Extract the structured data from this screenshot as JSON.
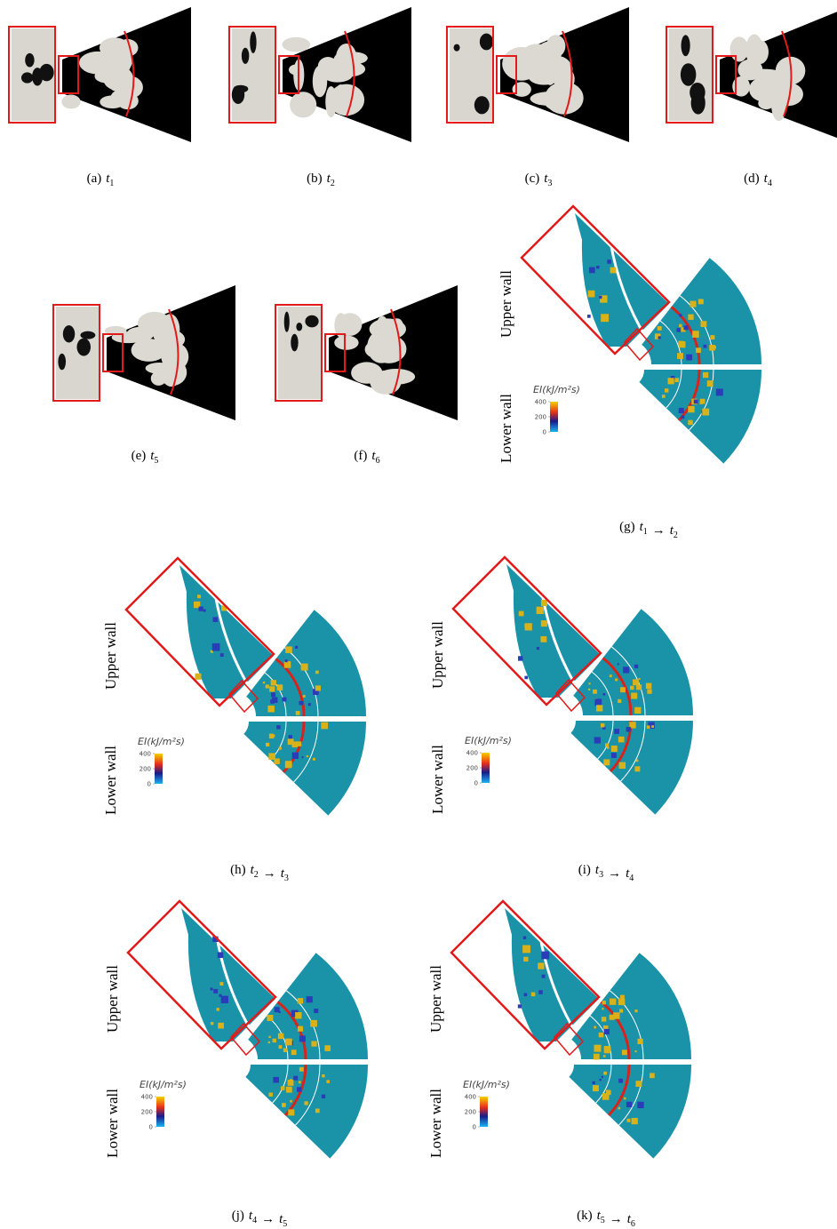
{
  "variable": "t",
  "arrow": "→",
  "snapshots": [
    {
      "label": "(a)",
      "time": "1"
    },
    {
      "label": "(b)",
      "time": "2"
    },
    {
      "label": "(c)",
      "time": "3"
    },
    {
      "label": "(d)",
      "time": "4"
    },
    {
      "label": "(e)",
      "time": "5"
    },
    {
      "label": "(f)",
      "time": "6"
    }
  ],
  "transitions": [
    {
      "label": "(g)",
      "from": "1",
      "to": "2"
    },
    {
      "label": "(h)",
      "from": "2",
      "to": "3"
    },
    {
      "label": "(i)",
      "from": "3",
      "to": "4"
    },
    {
      "label": "(j)",
      "from": "4",
      "to": "5"
    },
    {
      "label": "(k)",
      "from": "5",
      "to": "6"
    }
  ],
  "wall_labels": {
    "upper": "Upper wall",
    "lower": "Lower wall"
  },
  "colorbar": {
    "title": "EI(kJ/m²s)",
    "ticks": [
      400,
      200,
      0
    ]
  }
}
